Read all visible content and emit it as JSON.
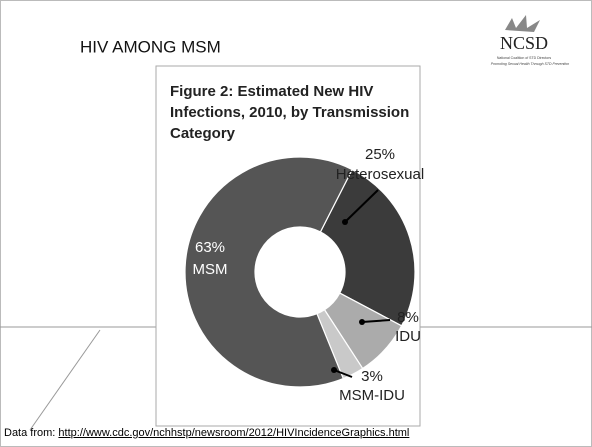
{
  "slide_title": "HIV AMONG MSM",
  "logo": {
    "name": "NCSD",
    "subtitle": "National Coalition of STD Directors",
    "tagline": "Promoting Sexual Health Through STD Prevention"
  },
  "footer": {
    "prefix": "Data from:",
    "link": "http://www.cdc.gov/nchhstp/newsroom/2012/HIVIncidenceGraphics.html"
  },
  "chart_data": {
    "type": "donut",
    "title": [
      "Figure 2: Estimated New HIV",
      "Infections, 2010, by Transmission",
      "Category"
    ],
    "categories": [
      "MSM",
      "Heterosexual",
      "IDU",
      "MSM-IDU"
    ],
    "values": [
      63,
      25,
      8,
      3
    ],
    "value_labels": [
      "63%",
      "25%",
      "8%",
      "3%"
    ],
    "colors": [
      "#555555",
      "#3b3b3b",
      "#ababab",
      "#c9c9c9"
    ]
  }
}
